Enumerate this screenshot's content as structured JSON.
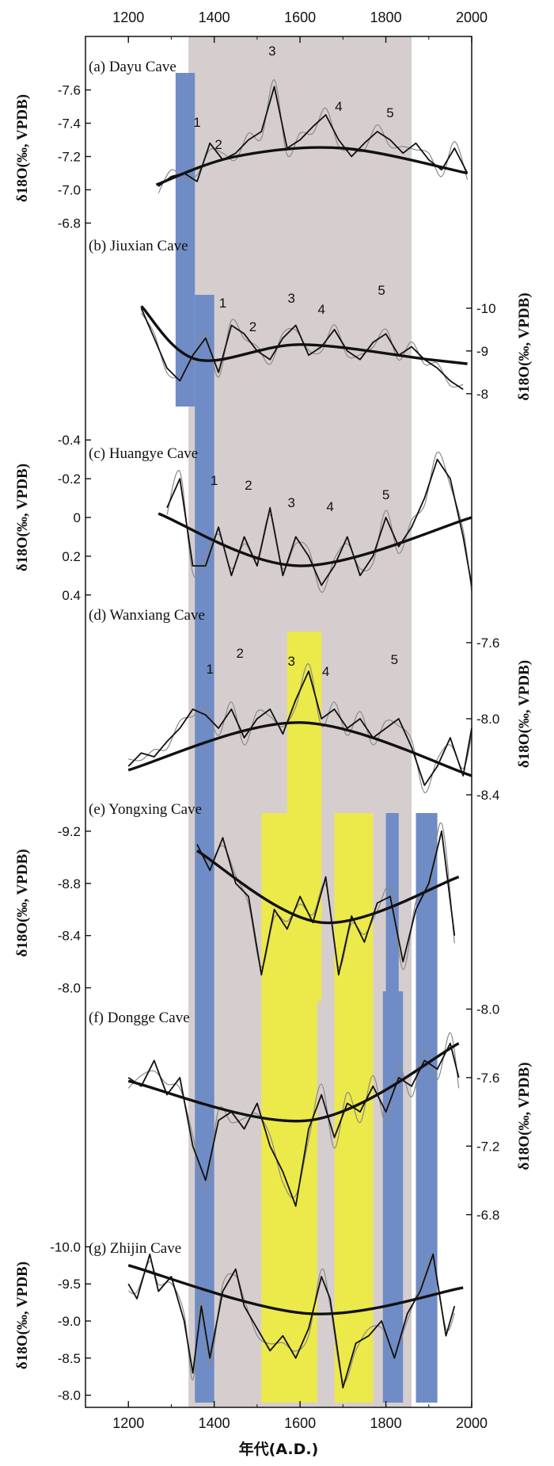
{
  "chart_data": {
    "type": "line",
    "title": "",
    "xlabel": "年代(A.D.)",
    "xlim": [
      1100,
      2000
    ],
    "x_ticks": [
      "1200",
      "1400",
      "1600",
      "1800",
      "2000"
    ],
    "shading": {
      "grey_period": [
        1340,
        1860
      ],
      "blue_bars": [
        {
          "from": 1310,
          "to": 1355,
          "panels": [
            "a",
            "b"
          ]
        },
        {
          "from": 1355,
          "to": 1400,
          "panels": [
            "b",
            "c",
            "d",
            "e",
            "f",
            "g"
          ]
        },
        {
          "from": 1800,
          "to": 1830,
          "panels": [
            "e"
          ]
        },
        {
          "from": 1793,
          "to": 1840,
          "panels": [
            "f",
            "g"
          ]
        },
        {
          "from": 1870,
          "to": 1920,
          "panels": [
            "e",
            "f",
            "g"
          ]
        }
      ],
      "yellow_bars": [
        {
          "from": 1570,
          "to": 1650,
          "panels": [
            "d",
            "e"
          ]
        },
        {
          "from": 1510,
          "to": 1640,
          "panels": [
            "e",
            "f",
            "g"
          ]
        },
        {
          "from": 1680,
          "to": 1770,
          "panels": [
            "e",
            "f",
            "g"
          ]
        }
      ],
      "grey_color": "#d6cece",
      "blue_color": "#6f8cc7",
      "yellow_color": "#ece94a"
    },
    "panels": [
      {
        "id": "a",
        "label": "(a) Dayu Cave",
        "axis_side": "left",
        "ylabel": "δ18O(‰, VPDB)",
        "ylim": [
          -6.75,
          -7.75
        ],
        "yticks": [
          "-7.6",
          "-7.4",
          "-7.2",
          "-7.0",
          "-6.8"
        ],
        "events": [
          "1",
          "2",
          "3",
          "4",
          "5"
        ],
        "series": {
          "x": [
            1270,
            1300,
            1330,
            1360,
            1390,
            1420,
            1450,
            1480,
            1510,
            1540,
            1570,
            1600,
            1630,
            1660,
            1690,
            1720,
            1750,
            1780,
            1810,
            1840,
            1870,
            1900,
            1930,
            1960,
            1990
          ],
          "y": [
            -7.02,
            -7.08,
            -7.1,
            -7.05,
            -7.28,
            -7.18,
            -7.22,
            -7.3,
            -7.35,
            -7.62,
            -7.25,
            -7.3,
            -7.38,
            -7.45,
            -7.3,
            -7.2,
            -7.28,
            -7.35,
            -7.3,
            -7.22,
            -7.28,
            -7.18,
            -7.12,
            -7.25,
            -7.1
          ]
        },
        "trend": {
          "x": [
            1265,
            1450,
            1700,
            1990
          ],
          "y": [
            -7.03,
            -7.2,
            -7.25,
            -7.1
          ]
        }
      },
      {
        "id": "b",
        "label": "(b) Jiuxian Cave",
        "axis_side": "right",
        "ylabel": "δ18O(‰, VPDB)",
        "ylim": [
          -7.7,
          -10.5
        ],
        "yticks": [
          "-10",
          "-9",
          "-8"
        ],
        "events": [
          "1",
          "2",
          "3",
          "4",
          "5"
        ],
        "series": {
          "x": [
            1230,
            1260,
            1290,
            1320,
            1350,
            1380,
            1410,
            1440,
            1470,
            1500,
            1530,
            1560,
            1590,
            1620,
            1650,
            1680,
            1710,
            1740,
            1770,
            1800,
            1830,
            1860,
            1890,
            1920,
            1950,
            1980
          ],
          "y": [
            -10.0,
            -9.3,
            -8.6,
            -8.3,
            -8.9,
            -9.3,
            -8.5,
            -9.6,
            -9.4,
            -9.0,
            -8.8,
            -9.3,
            -9.6,
            -8.9,
            -9.1,
            -9.5,
            -9.0,
            -8.8,
            -9.2,
            -9.4,
            -8.9,
            -9.1,
            -8.8,
            -8.6,
            -8.3,
            -8.1
          ]
        },
        "trend": {
          "x": [
            1230,
            1360,
            1600,
            1900,
            1990
          ],
          "y": [
            -10.05,
            -8.8,
            -9.15,
            -8.8,
            -8.7
          ]
        }
      },
      {
        "id": "c",
        "label": "(c) Huangye Cave",
        "axis_side": "left",
        "ylabel": "δ18O(‰, VPDB)",
        "ylim": [
          0.45,
          -0.45
        ],
        "yticks": [
          "-0.4",
          "-0.2",
          "0",
          "0.2",
          "0.4"
        ],
        "events": [
          "1",
          "2",
          "3",
          "4",
          "5"
        ],
        "series": {
          "x": [
            1290,
            1320,
            1350,
            1380,
            1410,
            1440,
            1470,
            1500,
            1530,
            1560,
            1590,
            1620,
            1650,
            1680,
            1710,
            1740,
            1770,
            1800,
            1830,
            1860,
            1890,
            1920,
            1950,
            1980,
            2000
          ],
          "y": [
            -0.05,
            -0.2,
            0.25,
            0.25,
            0.05,
            0.3,
            0.1,
            0.25,
            -0.05,
            0.3,
            0.1,
            0.2,
            0.35,
            0.25,
            0.1,
            0.3,
            0.2,
            0.0,
            0.15,
            0.05,
            -0.1,
            -0.3,
            -0.2,
            0.1,
            0.35
          ]
        },
        "trend": {
          "x": [
            1270,
            1600,
            2000
          ],
          "y": [
            -0.02,
            0.25,
            0.0
          ]
        }
      },
      {
        "id": "d",
        "label": "(d) Wanxiang Cave",
        "axis_side": "right",
        "ylabel": "δ18O(‰, VPDB)",
        "ylim": [
          -8.45,
          -7.5
        ],
        "yticks": [
          "-8.4",
          "-8.0",
          "-7.6"
        ],
        "events": [
          "1",
          "2",
          "3",
          "4",
          "5"
        ],
        "series": {
          "x": [
            1200,
            1230,
            1260,
            1290,
            1320,
            1350,
            1380,
            1410,
            1440,
            1470,
            1500,
            1530,
            1560,
            1590,
            1620,
            1650,
            1680,
            1710,
            1740,
            1770,
            1800,
            1830,
            1860,
            1890,
            1920,
            1950,
            1980,
            2000
          ],
          "y": [
            -8.25,
            -8.18,
            -8.2,
            -8.12,
            -8.05,
            -7.95,
            -7.98,
            -8.05,
            -7.95,
            -8.1,
            -8.0,
            -7.95,
            -8.08,
            -7.9,
            -7.75,
            -8.0,
            -7.95,
            -8.05,
            -8.0,
            -8.1,
            -8.05,
            -8.0,
            -8.15,
            -8.35,
            -8.25,
            -8.1,
            -8.3,
            -8.05
          ]
        },
        "trend": {
          "x": [
            1200,
            1600,
            2000
          ],
          "y": [
            -8.27,
            -8.02,
            -8.3
          ]
        }
      },
      {
        "id": "e",
        "label": "(e) Yongxing Cave",
        "axis_side": "left",
        "ylabel": "δ18O(‰, VPDB)",
        "ylim": [
          -7.9,
          -9.4
        ],
        "yticks": [
          "-9.2",
          "-8.8",
          "-8.4",
          "-8.0"
        ],
        "events": [],
        "series": {
          "x": [
            1360,
            1390,
            1420,
            1450,
            1480,
            1510,
            1540,
            1570,
            1600,
            1630,
            1660,
            1690,
            1720,
            1750,
            1780,
            1810,
            1840,
            1870,
            1900,
            1930,
            1960
          ],
          "y": [
            -9.1,
            -8.9,
            -9.15,
            -8.8,
            -8.7,
            -8.1,
            -8.6,
            -8.45,
            -8.7,
            -8.5,
            -8.85,
            -8.1,
            -8.55,
            -8.35,
            -8.65,
            -8.7,
            -8.2,
            -8.6,
            -8.8,
            -9.2,
            -8.4
          ]
        },
        "trend": {
          "x": [
            1360,
            1650,
            1970
          ],
          "y": [
            -9.05,
            -8.5,
            -8.85
          ]
        }
      },
      {
        "id": "f",
        "label": "(f) Dongge Cave",
        "axis_side": "right",
        "ylabel": "δ18O(‰, VPDB)",
        "ylim": [
          -6.6,
          -8.15
        ],
        "yticks": [
          "-8.0",
          "-7.6",
          "-7.2",
          "-6.8"
        ],
        "events": [],
        "series": {
          "x": [
            1200,
            1230,
            1260,
            1290,
            1320,
            1350,
            1380,
            1410,
            1440,
            1470,
            1500,
            1530,
            1560,
            1590,
            1620,
            1650,
            1680,
            1710,
            1740,
            1770,
            1800,
            1830,
            1860,
            1890,
            1920,
            1950,
            1970
          ],
          "y": [
            -7.6,
            -7.55,
            -7.7,
            -7.5,
            -7.6,
            -7.2,
            -7.0,
            -7.35,
            -7.4,
            -7.3,
            -7.45,
            -7.2,
            -7.05,
            -6.85,
            -7.3,
            -7.5,
            -7.25,
            -7.45,
            -7.4,
            -7.55,
            -7.4,
            -7.6,
            -7.55,
            -7.7,
            -7.65,
            -7.8,
            -7.6
          ]
        },
        "trend": {
          "x": [
            1200,
            1620,
            1970
          ],
          "y": [
            -7.58,
            -7.35,
            -7.8
          ]
        }
      },
      {
        "id": "g",
        "label": "(g) Zhijin Cave",
        "axis_side": "left",
        "ylabel": "δ18O(‰, VPDB)",
        "ylim": [
          -7.9,
          -10.25
        ],
        "yticks": [
          "-10.0",
          "-9.5",
          "-9.0",
          "-8.5",
          "-8.0"
        ],
        "events": [],
        "series": {
          "x": [
            1200,
            1220,
            1250,
            1270,
            1300,
            1330,
            1350,
            1370,
            1390,
            1420,
            1450,
            1470,
            1500,
            1530,
            1560,
            1590,
            1620,
            1650,
            1670,
            1700,
            1730,
            1760,
            1790,
            1820,
            1850,
            1880,
            1910,
            1940,
            1960
          ],
          "y": [
            -9.5,
            -9.3,
            -9.9,
            -9.4,
            -9.6,
            -9.0,
            -8.3,
            -9.2,
            -8.5,
            -9.4,
            -9.7,
            -9.2,
            -8.9,
            -8.6,
            -8.8,
            -8.5,
            -8.9,
            -9.6,
            -9.3,
            -8.1,
            -8.7,
            -8.8,
            -9.0,
            -8.5,
            -9.1,
            -9.4,
            -9.9,
            -8.8,
            -9.2
          ]
        },
        "trend": {
          "x": [
            1200,
            1620,
            1980
          ],
          "y": [
            -9.75,
            -9.1,
            -9.45
          ]
        }
      }
    ]
  }
}
